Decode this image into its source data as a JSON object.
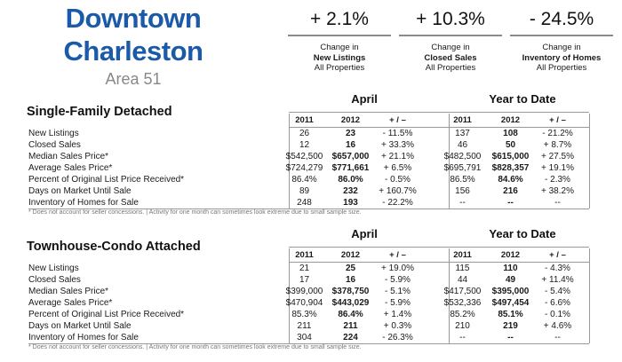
{
  "title": {
    "line1": "Downtown",
    "line2": "Charleston",
    "line3": "Area 51"
  },
  "kpis": [
    {
      "value": "+ 2.1%",
      "line1": "Change in",
      "line2": "New Listings",
      "line3": "All Properties"
    },
    {
      "value": "+ 10.3%",
      "line1": "Change in",
      "line2": "Closed Sales",
      "line3": "All Properties"
    },
    {
      "value": "- 24.5%",
      "line1": "Change in",
      "line2": "Inventory of Homes",
      "line3": "All Properties"
    }
  ],
  "col_headers": {
    "period1": "April",
    "period2": "Year to Date",
    "y1": "2011",
    "y2": "2012",
    "chg": "+ / –"
  },
  "sections": [
    {
      "title": "Single-Family Detached",
      "rows": [
        {
          "label": "New Listings",
          "v": [
            "26",
            "23",
            "- 11.5%",
            "137",
            "108",
            "- 21.2%"
          ]
        },
        {
          "label": "Closed Sales",
          "v": [
            "12",
            "16",
            "+ 33.3%",
            "46",
            "50",
            "+ 8.7%"
          ]
        },
        {
          "label": "Median Sales Price*",
          "v": [
            "$542,500",
            "$657,000",
            "+ 21.1%",
            "$482,500",
            "$615,000",
            "+ 27.5%"
          ]
        },
        {
          "label": "Average Sales Price*",
          "v": [
            "$724,279",
            "$771,661",
            "+ 6.5%",
            "$695,791",
            "$828,357",
            "+ 19.1%"
          ]
        },
        {
          "label": "Percent of Original List Price Received*",
          "v": [
            "86.4%",
            "86.0%",
            "- 0.5%",
            "86.5%",
            "84.6%",
            "- 2.3%"
          ]
        },
        {
          "label": "Days on Market Until Sale",
          "v": [
            "89",
            "232",
            "+ 160.7%",
            "156",
            "216",
            "+ 38.2%"
          ]
        },
        {
          "label": "Inventory of Homes for Sale",
          "v": [
            "248",
            "193",
            "- 22.2%",
            "--",
            "--",
            "--"
          ]
        }
      ],
      "footnote": "* Does not account for seller concessions.  |  Activity for one month can sometimes look extreme due to small sample size."
    },
    {
      "title": "Townhouse-Condo Attached",
      "rows": [
        {
          "label": "New Listings",
          "v": [
            "21",
            "25",
            "+ 19.0%",
            "115",
            "110",
            "- 4.3%"
          ]
        },
        {
          "label": "Closed Sales",
          "v": [
            "17",
            "16",
            "- 5.9%",
            "44",
            "49",
            "+ 11.4%"
          ]
        },
        {
          "label": "Median Sales Price*",
          "v": [
            "$399,000",
            "$378,750",
            "- 5.1%",
            "$417,500",
            "$395,000",
            "- 5.4%"
          ]
        },
        {
          "label": "Average Sales Price*",
          "v": [
            "$470,904",
            "$443,029",
            "- 5.9%",
            "$532,336",
            "$497,454",
            "- 6.6%"
          ]
        },
        {
          "label": "Percent of Original List Price Received*",
          "v": [
            "85.3%",
            "86.4%",
            "+ 1.4%",
            "85.2%",
            "85.1%",
            "- 0.1%"
          ]
        },
        {
          "label": "Days on Market Until Sale",
          "v": [
            "211",
            "211",
            "+ 0.3%",
            "210",
            "219",
            "+ 4.6%"
          ]
        },
        {
          "label": "Inventory of Homes for Sale",
          "v": [
            "304",
            "224",
            "- 26.3%",
            "--",
            "--",
            "--"
          ]
        }
      ],
      "footnote": "* Does not account for seller concessions.  |  Activity for one month can sometimes look extreme due to small sample size."
    }
  ]
}
